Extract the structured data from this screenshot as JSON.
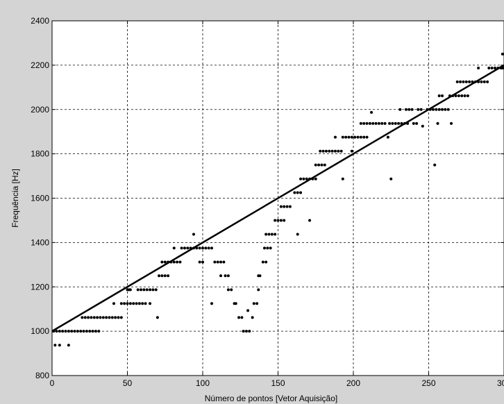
{
  "chart_data": {
    "type": "scatter",
    "title": "",
    "xlabel": "Número de pontos [Vetor Aquisição]",
    "ylabel": "Frequência [Hz]",
    "xlim": [
      0,
      300
    ],
    "ylim": [
      800,
      2400
    ],
    "xticks": [
      "0",
      "50",
      "100",
      "150",
      "200",
      "250",
      "300"
    ],
    "yticks": [
      "800",
      "1000",
      "1200",
      "1400",
      "1600",
      "1800",
      "2000",
      "2200",
      "2400"
    ],
    "grid": true,
    "series": [
      {
        "kind": "line",
        "x": [
          0,
          300
        ],
        "y": [
          1000,
          2200
        ]
      },
      {
        "kind": "points",
        "points": [
          [
            2,
            937
          ],
          [
            5,
            937
          ],
          [
            11,
            937
          ],
          [
            1,
            1000
          ],
          [
            3,
            1000
          ],
          [
            5,
            1000
          ],
          [
            7,
            1000
          ],
          [
            9,
            1000
          ],
          [
            11,
            1000
          ],
          [
            13,
            1000
          ],
          [
            15,
            1000
          ],
          [
            17,
            1000
          ],
          [
            19,
            1000
          ],
          [
            21,
            1000
          ],
          [
            23,
            1000
          ],
          [
            25,
            1000
          ],
          [
            27,
            1000
          ],
          [
            29,
            1000
          ],
          [
            31,
            1000
          ],
          [
            20,
            1062
          ],
          [
            22,
            1062
          ],
          [
            24,
            1062
          ],
          [
            26,
            1062
          ],
          [
            28,
            1062
          ],
          [
            30,
            1062
          ],
          [
            32,
            1062
          ],
          [
            34,
            1062
          ],
          [
            36,
            1062
          ],
          [
            38,
            1062
          ],
          [
            40,
            1062
          ],
          [
            42,
            1062
          ],
          [
            44,
            1062
          ],
          [
            46,
            1062
          ],
          [
            41,
            1125
          ],
          [
            46,
            1125
          ],
          [
            48,
            1125
          ],
          [
            50,
            1125
          ],
          [
            52,
            1125
          ],
          [
            54,
            1125
          ],
          [
            56,
            1125
          ],
          [
            58,
            1125
          ],
          [
            60,
            1125
          ],
          [
            62,
            1125
          ],
          [
            65,
            1125
          ],
          [
            50,
            1187
          ],
          [
            51,
            1187
          ],
          [
            52,
            1187
          ],
          [
            57,
            1187
          ],
          [
            59,
            1187
          ],
          [
            61,
            1187
          ],
          [
            63,
            1187
          ],
          [
            65,
            1187
          ],
          [
            67,
            1187
          ],
          [
            69,
            1187
          ],
          [
            70,
            1062
          ],
          [
            71,
            1250
          ],
          [
            73,
            1250
          ],
          [
            75,
            1250
          ],
          [
            77,
            1250
          ],
          [
            73,
            1312
          ],
          [
            75,
            1312
          ],
          [
            77,
            1312
          ],
          [
            79,
            1312
          ],
          [
            81,
            1312
          ],
          [
            83,
            1312
          ],
          [
            85,
            1312
          ],
          [
            81,
            1375
          ],
          [
            86,
            1375
          ],
          [
            88,
            1375
          ],
          [
            90,
            1375
          ],
          [
            92,
            1375
          ],
          [
            94,
            1375
          ],
          [
            96,
            1375
          ],
          [
            98,
            1375
          ],
          [
            100,
            1375
          ],
          [
            102,
            1375
          ],
          [
            104,
            1375
          ],
          [
            106,
            1375
          ],
          [
            94,
            1437
          ],
          [
            98,
            1312
          ],
          [
            100,
            1312
          ],
          [
            106,
            1125
          ],
          [
            108,
            1312
          ],
          [
            110,
            1312
          ],
          [
            112,
            1312
          ],
          [
            114,
            1312
          ],
          [
            112,
            1250
          ],
          [
            115,
            1250
          ],
          [
            117,
            1250
          ],
          [
            117,
            1187
          ],
          [
            119,
            1187
          ],
          [
            121,
            1125
          ],
          [
            122,
            1125
          ],
          [
            124,
            1062
          ],
          [
            126,
            1062
          ],
          [
            127,
            1000
          ],
          [
            129,
            1000
          ],
          [
            131,
            1000
          ],
          [
            130,
            1093
          ],
          [
            133,
            1062
          ],
          [
            134,
            1125
          ],
          [
            136,
            1125
          ],
          [
            137,
            1187
          ],
          [
            137,
            1250
          ],
          [
            138,
            1250
          ],
          [
            140,
            1312
          ],
          [
            142,
            1312
          ],
          [
            141,
            1375
          ],
          [
            143,
            1375
          ],
          [
            145,
            1375
          ],
          [
            142,
            1437
          ],
          [
            144,
            1437
          ],
          [
            146,
            1437
          ],
          [
            148,
            1437
          ],
          [
            148,
            1500
          ],
          [
            150,
            1500
          ],
          [
            152,
            1500
          ],
          [
            154,
            1500
          ],
          [
            152,
            1562
          ],
          [
            154,
            1562
          ],
          [
            156,
            1562
          ],
          [
            158,
            1562
          ],
          [
            161,
            1625
          ],
          [
            163,
            1625
          ],
          [
            165,
            1625
          ],
          [
            163,
            1437
          ],
          [
            165,
            1687
          ],
          [
            167,
            1687
          ],
          [
            169,
            1687
          ],
          [
            171,
            1687
          ],
          [
            173,
            1687
          ],
          [
            175,
            1687
          ],
          [
            171,
            1500
          ],
          [
            175,
            1750
          ],
          [
            177,
            1750
          ],
          [
            179,
            1750
          ],
          [
            181,
            1750
          ],
          [
            178,
            1812
          ],
          [
            180,
            1812
          ],
          [
            182,
            1812
          ],
          [
            184,
            1812
          ],
          [
            186,
            1812
          ],
          [
            188,
            1812
          ],
          [
            190,
            1812
          ],
          [
            192,
            1812
          ],
          [
            188,
            1875
          ],
          [
            193,
            1875
          ],
          [
            195,
            1875
          ],
          [
            197,
            1875
          ],
          [
            199,
            1875
          ],
          [
            201,
            1875
          ],
          [
            203,
            1875
          ],
          [
            205,
            1875
          ],
          [
            207,
            1875
          ],
          [
            209,
            1875
          ],
          [
            193,
            1687
          ],
          [
            199,
            1812
          ],
          [
            205,
            1937
          ],
          [
            207,
            1937
          ],
          [
            209,
            1937
          ],
          [
            211,
            1937
          ],
          [
            213,
            1937
          ],
          [
            215,
            1937
          ],
          [
            217,
            1937
          ],
          [
            219,
            1937
          ],
          [
            221,
            1937
          ],
          [
            212,
            1987
          ],
          [
            223,
            1875
          ],
          [
            225,
            1687
          ],
          [
            224,
            1937
          ],
          [
            226,
            1937
          ],
          [
            228,
            1937
          ],
          [
            230,
            1937
          ],
          [
            232,
            1937
          ],
          [
            234,
            1937
          ],
          [
            236,
            1937
          ],
          [
            240,
            1937
          ],
          [
            242,
            1937
          ],
          [
            246,
            1925
          ],
          [
            231,
            2000
          ],
          [
            235,
            2000
          ],
          [
            237,
            2000
          ],
          [
            239,
            2000
          ],
          [
            243,
            2000
          ],
          [
            245,
            2000
          ],
          [
            249,
            2000
          ],
          [
            251,
            2000
          ],
          [
            253,
            2000
          ],
          [
            255,
            2000
          ],
          [
            257,
            2000
          ],
          [
            259,
            2000
          ],
          [
            261,
            2000
          ],
          [
            263,
            2000
          ],
          [
            254,
            1750
          ],
          [
            256,
            1937
          ],
          [
            265,
            1937
          ],
          [
            257,
            2062
          ],
          [
            259,
            2062
          ],
          [
            264,
            2062
          ],
          [
            266,
            2062
          ],
          [
            268,
            2062
          ],
          [
            270,
            2062
          ],
          [
            272,
            2062
          ],
          [
            274,
            2062
          ],
          [
            269,
            2125
          ],
          [
            271,
            2125
          ],
          [
            273,
            2125
          ],
          [
            275,
            2125
          ],
          [
            277,
            2125
          ],
          [
            279,
            2125
          ],
          [
            281,
            2125
          ],
          [
            283,
            2125
          ],
          [
            285,
            2125
          ],
          [
            287,
            2125
          ],
          [
            289,
            2125
          ],
          [
            276,
            2062
          ],
          [
            283,
            2187
          ],
          [
            290,
            2187
          ],
          [
            292,
            2187
          ],
          [
            294,
            2187
          ],
          [
            296,
            2187
          ],
          [
            298,
            2187
          ],
          [
            299,
            2187
          ],
          [
            300,
            2187
          ],
          [
            299,
            2250
          ]
        ]
      }
    ]
  }
}
